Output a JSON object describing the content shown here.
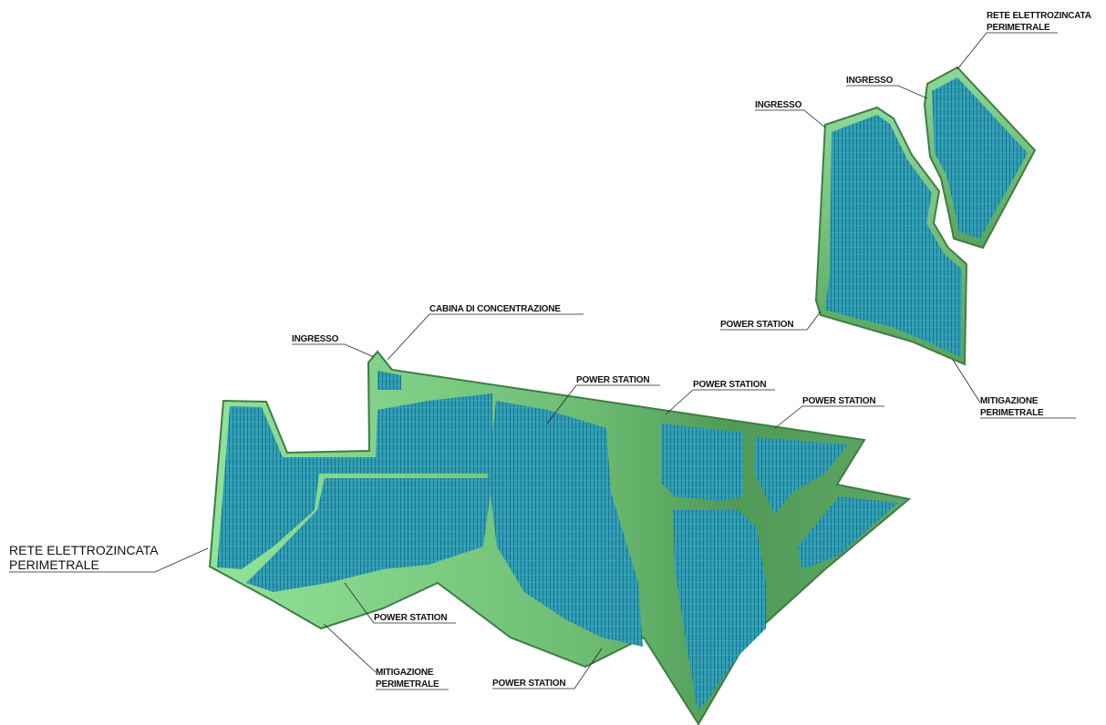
{
  "labels": [
    {
      "lines": [
        "RETE ELETTROZINCATA",
        "PERIMETRALE"
      ]
    },
    {
      "lines": [
        "INGRESSO"
      ]
    },
    {
      "lines": [
        "INGRESSO"
      ]
    },
    {
      "lines": [
        "POWER STATION"
      ]
    },
    {
      "lines": [
        "MITIGAZIONE",
        "PERIMETRALE"
      ]
    },
    {
      "lines": [
        "CABINA DI CONCENTRAZIONE"
      ]
    },
    {
      "lines": [
        "INGRESSO"
      ]
    },
    {
      "lines": [
        "POWER STATION"
      ]
    },
    {
      "lines": [
        "POWER STATION"
      ]
    },
    {
      "lines": [
        "POWER STATION"
      ]
    },
    {
      "lines": [
        "RETE ELETTROZINCATA",
        "PERIMETRALE"
      ]
    },
    {
      "lines": [
        "POWER STATION"
      ]
    },
    {
      "lines": [
        "MITIGAZIONE",
        "PERIMETRALE"
      ]
    },
    {
      "lines": [
        "POWER STATION"
      ]
    }
  ]
}
